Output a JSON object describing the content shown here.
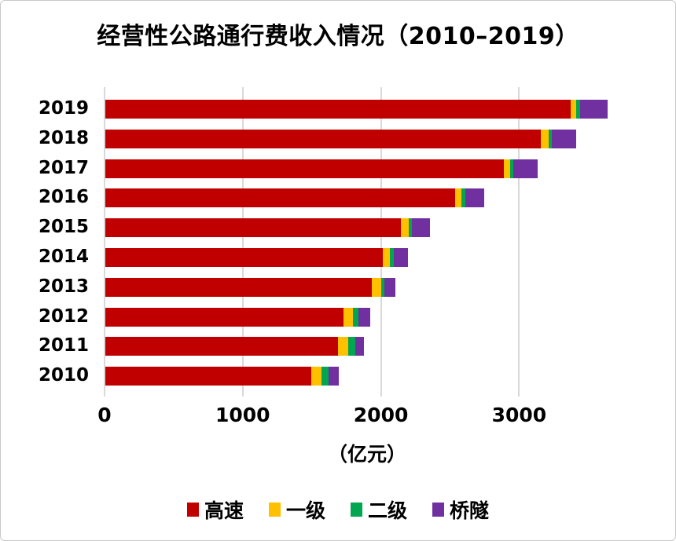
{
  "title": "经营性公路通行费收入情况（2010–2019）",
  "chart_data": {
    "type": "bar",
    "orientation": "horizontal",
    "stacked": true,
    "title": "经营性公路通行费收入情况（2010–2019）",
    "categories": [
      "2019",
      "2018",
      "2017",
      "2016",
      "2015",
      "2014",
      "2013",
      "2012",
      "2011",
      "2010"
    ],
    "category_order": "top-to-bottom",
    "series": [
      {
        "name": "高速",
        "color": "#C00000",
        "values": [
          3368,
          3153,
          2883,
          2532,
          2140,
          2009,
          1928,
          1723,
          1684,
          1490
        ]
      },
      {
        "name": "一级",
        "color": "#FFC000",
        "values": [
          41,
          53,
          47,
          47,
          54,
          51,
          67,
          68,
          72,
          73
        ]
      },
      {
        "name": "二级",
        "color": "#00A650",
        "values": [
          25,
          25,
          23,
          28,
          25,
          28,
          23,
          38,
          53,
          52
        ]
      },
      {
        "name": "桥隧",
        "color": "#7030A0",
        "values": [
          199,
          178,
          175,
          133,
          129,
          101,
          81,
          89,
          61,
          75
        ]
      }
    ],
    "totals": [
      3633,
      3409,
      3128,
      2740,
      2348,
      2189,
      2099,
      1918,
      1870,
      1690
    ],
    "xlabel": "（亿元）",
    "x_ticks": [
      0,
      1000,
      2000,
      3000
    ],
    "xlim": [
      0,
      3800
    ],
    "grid": true,
    "gridline_color": "#D9D9D9",
    "legend_position": "bottom",
    "legend": [
      "高速",
      "一级",
      "二级",
      "桥隧"
    ]
  },
  "colors": {
    "background": "#FFFFFF",
    "border": "#C9C9C9",
    "text": "#000000",
    "gridline": "#D9D9D9"
  }
}
